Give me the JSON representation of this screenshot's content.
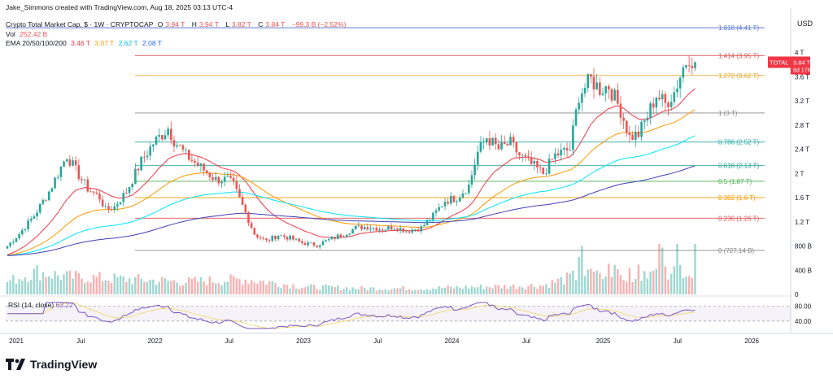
{
  "credit": "Jake_Simmons created with TradingView.com, Aug 18, 2025 03:13 UTC-4",
  "header": {
    "symbol": "Crypto Total Market Cap, $ · 1W · CRYPTOCAP",
    "o_label": "O",
    "o_value": "3.94 T",
    "h_label": "H",
    "h_value": "3.94 T",
    "l_label": "L",
    "l_value": "3.82 T",
    "c_label": "C",
    "c_value": "3.84 T",
    "change": "−99.3 B (−2.52%)",
    "vol_label": "Vol",
    "vol_value": "252.42 B",
    "ema_label": "EMA 20/50/100/200",
    "ema20": "3.46 T",
    "ema50": "3.07 T",
    "ema100": "2.62 T",
    "ema200": "2.08 T"
  },
  "currency": "USD",
  "total_badge": {
    "label": "TOTAL",
    "value": "3.84 T",
    "countdown": "6d 17h"
  },
  "rsi_label": "RSI (14, close)",
  "rsi_value": "63.22",
  "brand": "TradingView",
  "colors": {
    "up": "#26a69a",
    "down": "#ef5350",
    "ema20": "#f23645",
    "ema50": "#ff9800",
    "ema100": "#00e5ff",
    "ema200": "#3f3fb8",
    "rsi": "#7e57c2",
    "rsi_ma": "#f5d76e"
  },
  "chart_data": {
    "type": "candlestick",
    "x_ticks": [
      "2021",
      "Jul",
      "2022",
      "Jul",
      "2023",
      "Jul",
      "2024",
      "Jul",
      "2025",
      "Jul",
      "2026"
    ],
    "y_ticks": [
      "4 T",
      "3.6 T",
      "3.2 T",
      "2.8 T",
      "2.4 T",
      "2 T",
      "1.6 T",
      "1.2 T",
      "800 B",
      "400 B",
      "0"
    ],
    "rsi_ticks": [
      "80.00",
      "40.00"
    ],
    "fib_levels": [
      {
        "label": "1.618 (4.41 T)",
        "value": 4.41,
        "color": "#5b7ad6"
      },
      {
        "label": "1.414 (3.95 T)",
        "value": 3.95,
        "color": "#e05555"
      },
      {
        "label": "1.272 (3.62 T)",
        "value": 3.62,
        "color": "#e8a838"
      },
      {
        "label": "1 (3 T)",
        "value": 3.0,
        "color": "#888888"
      },
      {
        "label": "0.786 (2.52 T)",
        "value": 2.52,
        "color": "#26a6a6"
      },
      {
        "label": "0.618 (2.13 T)",
        "value": 2.13,
        "color": "#26a69a"
      },
      {
        "label": "0.5 (1.87 T)",
        "value": 1.87,
        "color": "#4caf50"
      },
      {
        "label": "0.382 (1.6 T)",
        "value": 1.6,
        "color": "#ff9800"
      },
      {
        "label": "0.236 (1.26 T)",
        "value": 1.26,
        "color": "#e05555"
      },
      {
        "label": "0 (727.14 B)",
        "value": 0.727,
        "color": "#888888"
      }
    ],
    "price_anchors": [
      [
        0,
        0.8
      ],
      [
        4,
        1.0
      ],
      [
        9,
        1.3
      ],
      [
        14,
        1.7
      ],
      [
        18,
        2.1
      ],
      [
        20,
        2.3
      ],
      [
        23,
        2.05
      ],
      [
        27,
        1.75
      ],
      [
        31,
        1.6
      ],
      [
        33,
        1.4
      ],
      [
        36,
        1.45
      ],
      [
        40,
        1.7
      ],
      [
        45,
        2.2
      ],
      [
        49,
        2.5
      ],
      [
        54,
        2.75
      ],
      [
        56,
        2.55
      ],
      [
        60,
        2.3
      ],
      [
        65,
        2.1
      ],
      [
        70,
        1.9
      ],
      [
        74,
        1.9
      ],
      [
        76,
        1.8
      ],
      [
        80,
        1.35
      ],
      [
        83,
        1.0
      ],
      [
        87,
        0.88
      ],
      [
        91,
        0.98
      ],
      [
        95,
        0.93
      ],
      [
        99,
        0.85
      ],
      [
        104,
        0.82
      ],
      [
        108,
        0.9
      ],
      [
        113,
        1.0
      ],
      [
        117,
        1.1
      ],
      [
        121,
        1.12
      ],
      [
        126,
        1.08
      ],
      [
        130,
        1.12
      ],
      [
        134,
        1.05
      ],
      [
        139,
        1.1
      ],
      [
        143,
        1.3
      ],
      [
        147,
        1.55
      ],
      [
        151,
        1.6
      ],
      [
        155,
        1.8
      ],
      [
        158,
        2.35
      ],
      [
        161,
        2.6
      ],
      [
        165,
        2.4
      ],
      [
        169,
        2.5
      ],
      [
        172,
        2.3
      ],
      [
        176,
        2.15
      ],
      [
        180,
        2.0
      ],
      [
        184,
        2.3
      ],
      [
        189,
        2.4
      ],
      [
        192,
        3.3
      ],
      [
        196,
        3.55
      ],
      [
        199,
        3.4
      ],
      [
        202,
        3.45
      ],
      [
        206,
        3.05
      ],
      [
        209,
        2.6
      ],
      [
        212,
        2.65
      ],
      [
        215,
        2.95
      ],
      [
        218,
        3.3
      ],
      [
        221,
        3.15
      ],
      [
        224,
        3.35
      ],
      [
        227,
        3.75
      ],
      [
        229,
        3.95
      ],
      [
        231,
        3.84
      ]
    ],
    "volume_profile": [
      [
        0,
        0.25
      ],
      [
        10,
        0.45
      ],
      [
        20,
        0.35
      ],
      [
        40,
        0.3
      ],
      [
        60,
        0.25
      ],
      [
        80,
        0.3
      ],
      [
        100,
        0.15
      ],
      [
        120,
        0.12
      ],
      [
        140,
        0.12
      ],
      [
        160,
        0.15
      ],
      [
        180,
        0.18
      ],
      [
        190,
        0.35
      ],
      [
        200,
        0.45
      ],
      [
        210,
        0.4
      ],
      [
        220,
        0.5
      ],
      [
        231,
        0.4
      ]
    ],
    "ylim": [
      0,
      4.6
    ]
  }
}
